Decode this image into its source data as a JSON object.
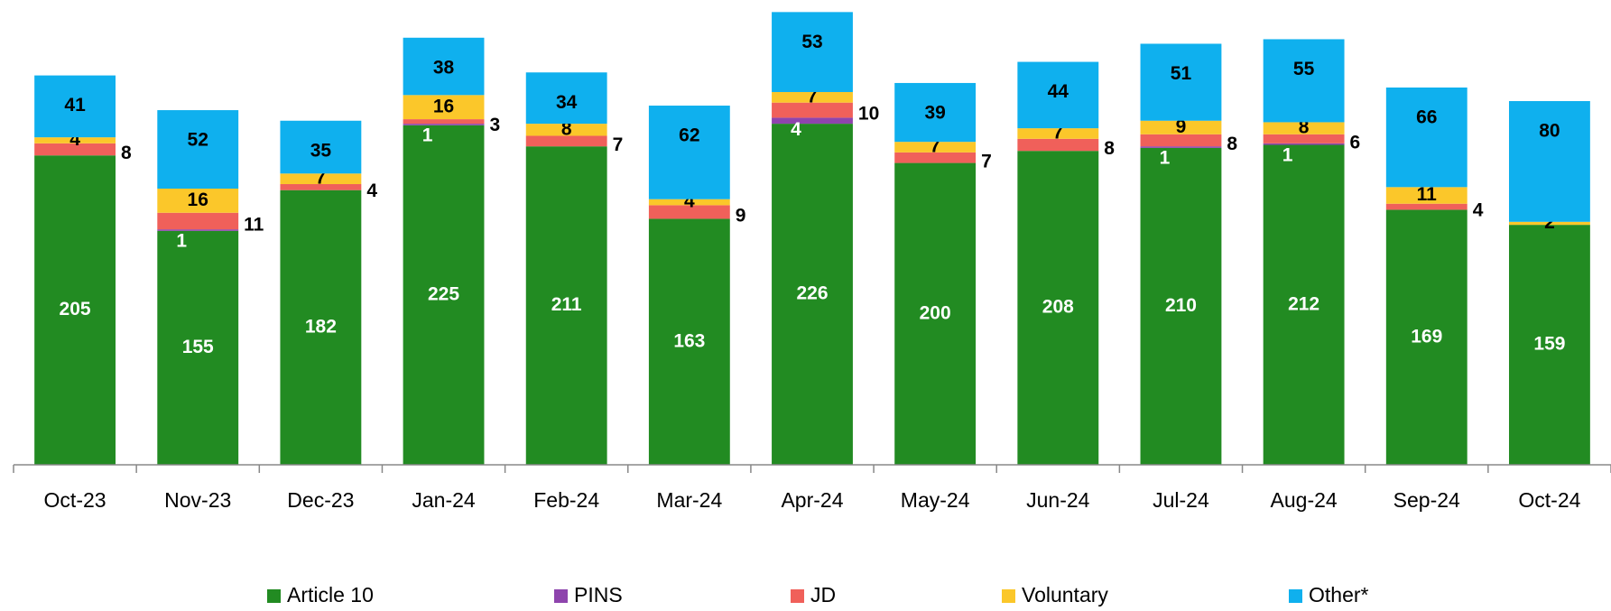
{
  "chart_data": {
    "type": "stacked-bar",
    "categories": [
      "Oct-23",
      "Nov-23",
      "Dec-23",
      "Jan-24",
      "Feb-24",
      "Mar-24",
      "Apr-24",
      "May-24",
      "Jun-24",
      "Jul-24",
      "Aug-24",
      "Sep-24",
      "Oct-24"
    ],
    "series": [
      {
        "name": "Article 10",
        "color": "#228b22",
        "values": [
          205,
          155,
          182,
          225,
          211,
          163,
          226,
          200,
          208,
          210,
          212,
          169,
          159
        ]
      },
      {
        "name": "PINS",
        "color": "#8e44ad",
        "values": [
          null,
          1,
          null,
          1,
          null,
          null,
          4,
          null,
          null,
          1,
          1,
          null,
          null
        ]
      },
      {
        "name": "JD",
        "color": "#f0605a",
        "values": [
          8,
          11,
          4,
          3,
          7,
          9,
          10,
          7,
          8,
          8,
          6,
          4,
          null
        ]
      },
      {
        "name": "Voluntary",
        "color": "#fbc72a",
        "values": [
          4,
          16,
          7,
          16,
          8,
          4,
          7,
          7,
          7,
          9,
          8,
          11,
          2
        ]
      },
      {
        "name": "Other*",
        "color": "#0fb0ee",
        "values": [
          41,
          52,
          35,
          38,
          34,
          62,
          53,
          39,
          44,
          51,
          55,
          66,
          80
        ]
      }
    ],
    "ylim": [
      0,
      305
    ],
    "legend": "bottom"
  }
}
